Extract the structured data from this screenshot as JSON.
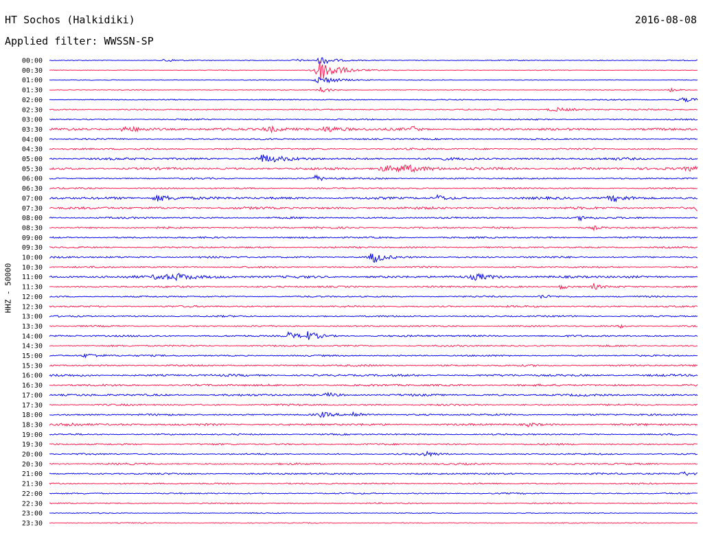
{
  "header": {
    "station": "HT Sochos (Halkidiki)",
    "date": "2016-08-08",
    "filter": "Applied filter: WWSSN-SP"
  },
  "chart_data": {
    "type": "line",
    "title": "HT Sochos (Halkidiki)",
    "subtitle": "Applied filter: WWSSN-SP",
    "date": "2016-08-08",
    "ylabel": "HHZ - 50000",
    "xlabel": "",
    "row_interval_minutes": 30,
    "row_labels": [
      "00:00",
      "00:30",
      "01:00",
      "01:30",
      "02:00",
      "02:30",
      "03:00",
      "03:30",
      "04:00",
      "04:30",
      "05:00",
      "05:30",
      "06:00",
      "06:30",
      "07:00",
      "07:30",
      "08:00",
      "08:30",
      "09:00",
      "09:30",
      "10:00",
      "10:30",
      "11:00",
      "11:30",
      "12:00",
      "12:30",
      "13:00",
      "13:30",
      "14:00",
      "14:30",
      "15:00",
      "15:30",
      "16:00",
      "16:30",
      "17:00",
      "17:30",
      "18:00",
      "18:30",
      "19:00",
      "19:30",
      "20:00",
      "20:30",
      "21:00",
      "21:30",
      "22:00",
      "22:30",
      "23:00",
      "23:30"
    ],
    "trace_colors": [
      "#0000ee",
      "#ff1a4d"
    ],
    "noise_amplitude": [
      0.3,
      0.2,
      0.2,
      0.25,
      0.35,
      0.45,
      0.45,
      0.8,
      0.5,
      0.6,
      0.8,
      0.8,
      0.5,
      0.5,
      0.8,
      0.8,
      0.6,
      0.6,
      0.55,
      0.55,
      0.6,
      0.55,
      0.8,
      0.6,
      0.5,
      0.6,
      0.5,
      0.5,
      0.6,
      0.55,
      0.5,
      0.6,
      0.7,
      0.7,
      0.7,
      0.6,
      0.6,
      0.7,
      0.5,
      0.55,
      0.5,
      0.6,
      0.55,
      0.5,
      0.45,
      0.4,
      0.3,
      0.3
    ],
    "events": [
      {
        "row": 0,
        "x": 0.18,
        "amp": 1.5,
        "width": 0.008
      },
      {
        "row": 0,
        "x": 0.38,
        "amp": 1.2,
        "width": 0.01
      },
      {
        "row": 0,
        "x": 0.42,
        "amp": 3.5,
        "width": 0.012
      },
      {
        "row": 1,
        "x": 0.418,
        "amp": 9.0,
        "width": 0.02
      },
      {
        "row": 2,
        "x": 0.42,
        "amp": 3.0,
        "width": 0.02
      },
      {
        "row": 3,
        "x": 0.42,
        "amp": 2.5,
        "width": 0.01
      },
      {
        "row": 3,
        "x": 0.96,
        "amp": 1.5,
        "width": 0.01
      },
      {
        "row": 4,
        "x": 0.98,
        "amp": 1.5,
        "width": 0.02
      },
      {
        "row": 5,
        "x": 0.78,
        "amp": 1.5,
        "width": 0.02
      },
      {
        "row": 7,
        "x": 0.12,
        "amp": 2.0,
        "width": 0.02
      },
      {
        "row": 7,
        "x": 0.34,
        "amp": 2.2,
        "width": 0.02
      },
      {
        "row": 7,
        "x": 0.43,
        "amp": 1.8,
        "width": 0.02
      },
      {
        "row": 7,
        "x": 0.56,
        "amp": 2.5,
        "width": 0.005
      },
      {
        "row": 10,
        "x": 0.33,
        "amp": 3.0,
        "width": 0.02
      },
      {
        "row": 11,
        "x": 0.52,
        "amp": 2.0,
        "width": 0.03
      },
      {
        "row": 11,
        "x": 0.55,
        "amp": 1.8,
        "width": 0.025
      },
      {
        "row": 11,
        "x": 0.99,
        "amp": 1.8,
        "width": 0.02
      },
      {
        "row": 12,
        "x": 0.41,
        "amp": 2.5,
        "width": 0.012
      },
      {
        "row": 14,
        "x": 0.17,
        "amp": 2.5,
        "width": 0.02
      },
      {
        "row": 14,
        "x": 0.6,
        "amp": 2.8,
        "width": 0.006
      },
      {
        "row": 14,
        "x": 0.87,
        "amp": 2.2,
        "width": 0.02
      },
      {
        "row": 15,
        "x": 1.0,
        "amp": 2.0,
        "width": 0.01
      },
      {
        "row": 16,
        "x": 0.82,
        "amp": 1.8,
        "width": 0.01
      },
      {
        "row": 17,
        "x": 0.84,
        "amp": 1.5,
        "width": 0.005
      },
      {
        "row": 20,
        "x": 0.5,
        "amp": 5.0,
        "width": 0.01
      },
      {
        "row": 22,
        "x": 0.17,
        "amp": 2.2,
        "width": 0.02
      },
      {
        "row": 22,
        "x": 0.2,
        "amp": 2.0,
        "width": 0.02
      },
      {
        "row": 22,
        "x": 0.66,
        "amp": 2.0,
        "width": 0.02
      },
      {
        "row": 23,
        "x": 0.79,
        "amp": 2.5,
        "width": 0.006
      },
      {
        "row": 23,
        "x": 0.84,
        "amp": 2.2,
        "width": 0.006
      },
      {
        "row": 24,
        "x": 0.76,
        "amp": 1.5,
        "width": 0.01
      },
      {
        "row": 27,
        "x": 0.88,
        "amp": 1.5,
        "width": 0.006
      },
      {
        "row": 28,
        "x": 0.37,
        "amp": 2.6,
        "width": 0.012
      },
      {
        "row": 28,
        "x": 0.4,
        "amp": 3.0,
        "width": 0.012
      },
      {
        "row": 30,
        "x": 0.06,
        "amp": 1.6,
        "width": 0.02
      },
      {
        "row": 34,
        "x": 0.43,
        "amp": 1.6,
        "width": 0.01
      },
      {
        "row": 36,
        "x": 0.42,
        "amp": 1.8,
        "width": 0.01
      },
      {
        "row": 36,
        "x": 0.47,
        "amp": 2.3,
        "width": 0.01
      },
      {
        "row": 37,
        "x": 0.03,
        "amp": 1.6,
        "width": 0.02
      },
      {
        "row": 37,
        "x": 0.74,
        "amp": 1.5,
        "width": 0.006
      },
      {
        "row": 40,
        "x": 0.58,
        "amp": 1.8,
        "width": 0.012
      },
      {
        "row": 42,
        "x": 0.98,
        "amp": 1.5,
        "width": 0.01
      }
    ]
  }
}
